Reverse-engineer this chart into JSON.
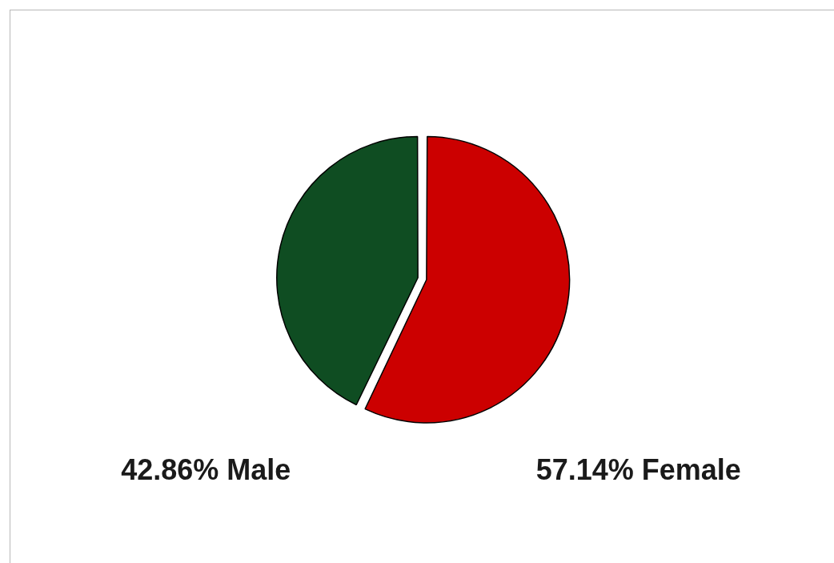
{
  "chart_data": {
    "type": "pie",
    "categories": [
      "Female",
      "Male"
    ],
    "values": [
      57.14,
      42.86
    ],
    "colors": [
      "#cc0000",
      "#0f4d22"
    ],
    "value_labels": [
      "57.14%",
      "42.86%"
    ]
  }
}
